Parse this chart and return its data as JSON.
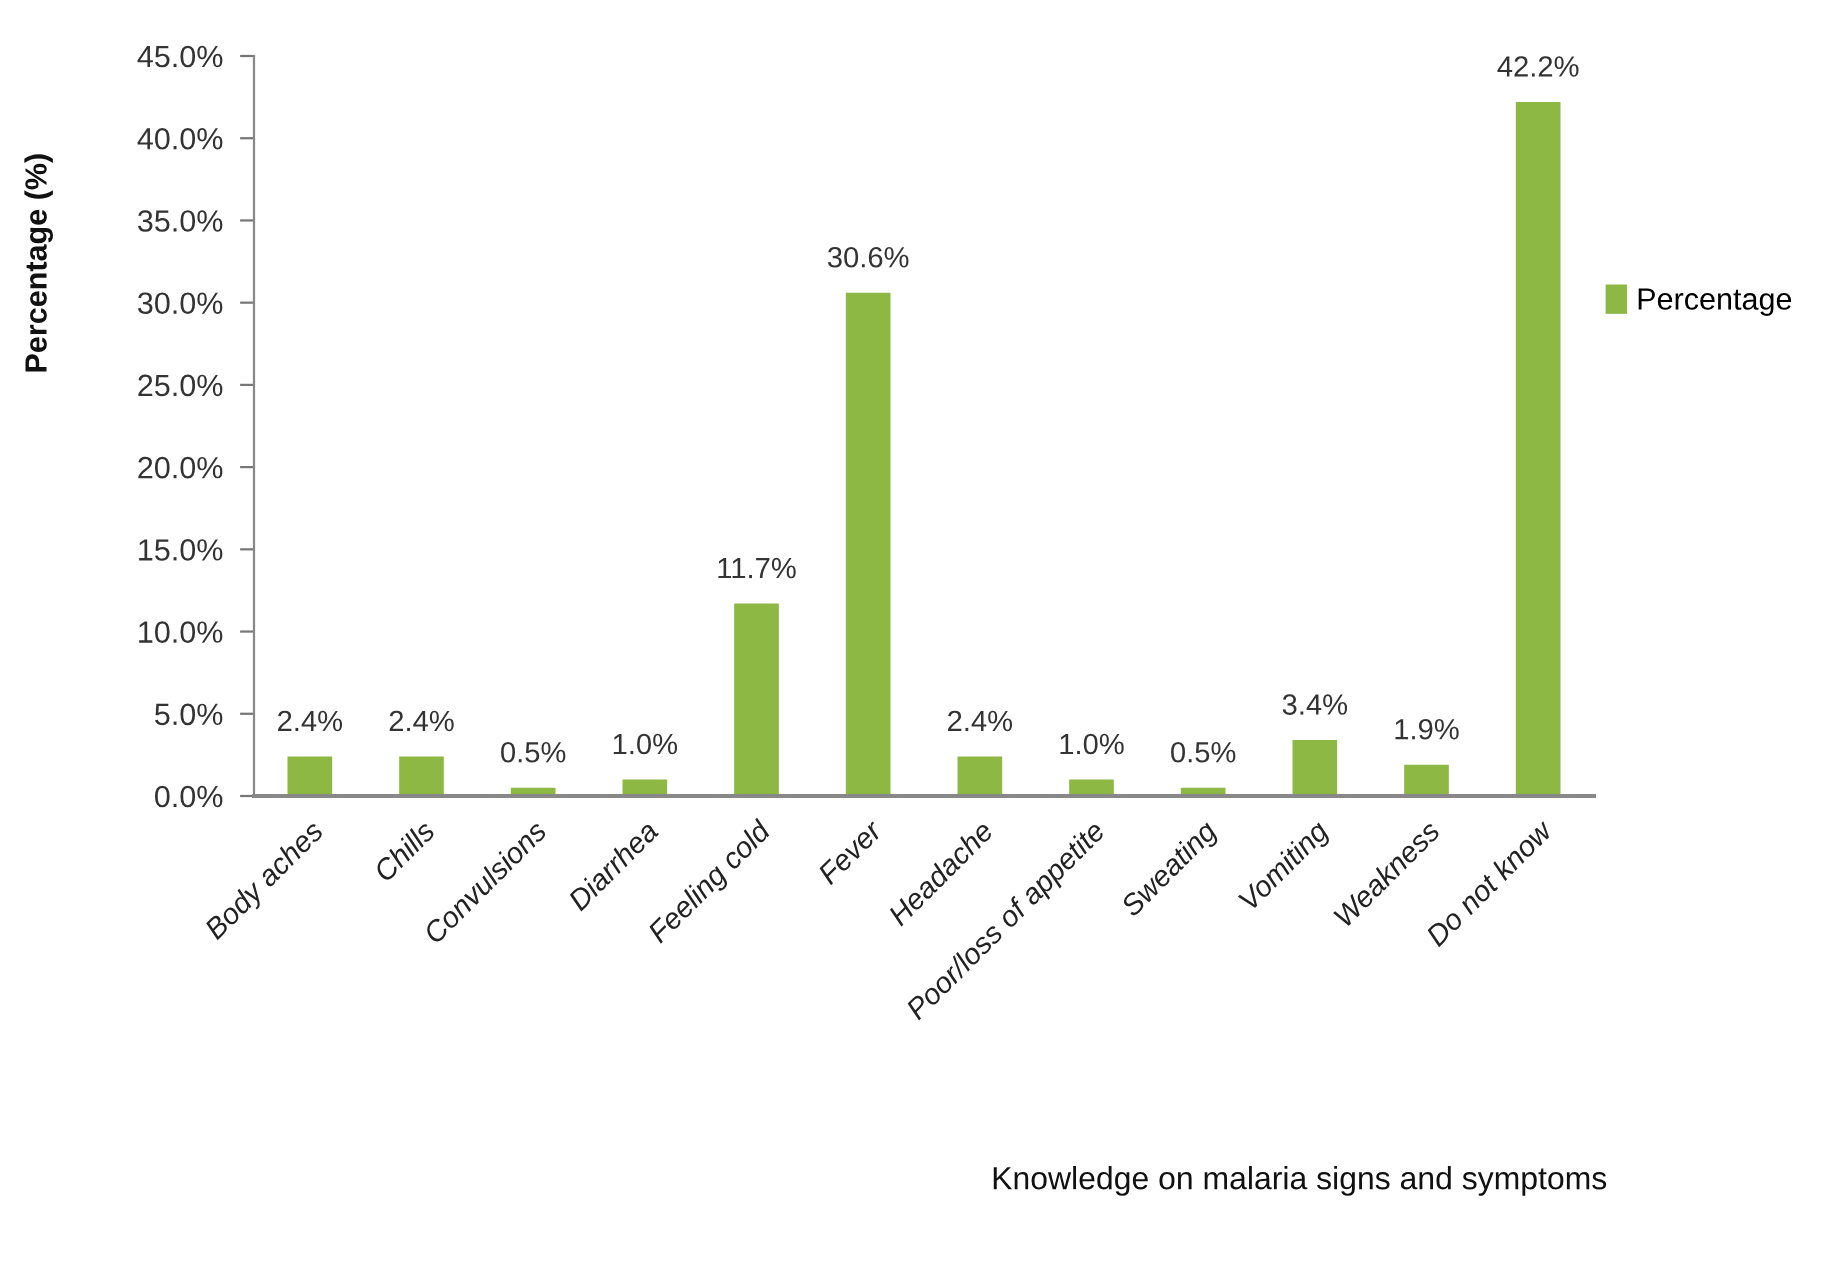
{
  "chart_data": {
    "type": "bar",
    "xlabel": "Knowledge on malaria signs and symptoms",
    "ylabel": "Percentage (%)",
    "categories": [
      "Body aches",
      "Chills",
      "Convulsions",
      "Diarrhea",
      "Feeling cold",
      "Fever",
      "Headache",
      "Poor/loss of appetite",
      "Sweating",
      "Vomiting",
      "Weakness",
      "Do not know"
    ],
    "series": [
      {
        "name": "Percentage",
        "color": "#8db843",
        "values": [
          2.4,
          2.4,
          0.5,
          1.0,
          11.7,
          30.6,
          2.4,
          1.0,
          0.5,
          3.4,
          1.9,
          42.2
        ],
        "value_labels": [
          "2.4%",
          "2.4%",
          "0.5%",
          "1.0%",
          "11.7%",
          "30.6%",
          "2.4%",
          "1.0%",
          "0.5%",
          "3.4%",
          "1.9%",
          "42.2%"
        ]
      }
    ],
    "ylim": [
      0,
      45
    ],
    "yticks": [
      {
        "value": 0,
        "label": "0.0%"
      },
      {
        "value": 5,
        "label": "5.0%"
      },
      {
        "value": 10,
        "label": "10.0%"
      },
      {
        "value": 15,
        "label": "15.0%"
      },
      {
        "value": 20,
        "label": "20.0%"
      },
      {
        "value": 25,
        "label": "25.0%"
      },
      {
        "value": 30,
        "label": "30.0%"
      },
      {
        "value": 35,
        "label": "35.0%"
      },
      {
        "value": 40,
        "label": "40.0%"
      },
      {
        "value": 45,
        "label": "45.0%"
      }
    ],
    "grid": false,
    "legend": "right"
  }
}
